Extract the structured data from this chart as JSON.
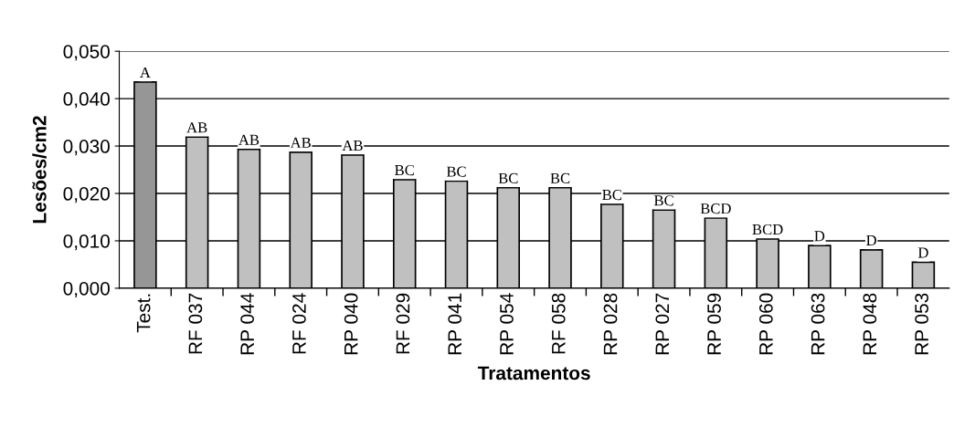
{
  "chart_data": {
    "type": "bar",
    "xlabel": "Tratamentos",
    "ylabel": "Lesões/cm2",
    "categories": [
      "Test.",
      "RF 037",
      "RP 044",
      "RF 024",
      "RP 040",
      "RF 029",
      "RP 041",
      "RP 054",
      "RF 058",
      "RP 028",
      "RP 027",
      "RP 059",
      "RP 060",
      "RP 063",
      "RP 048",
      "RP 053"
    ],
    "values": [
      0.0435,
      0.0319,
      0.0293,
      0.0287,
      0.0281,
      0.0229,
      0.0226,
      0.0212,
      0.0212,
      0.0177,
      0.0165,
      0.0148,
      0.0104,
      0.009,
      0.0081,
      0.0055
    ],
    "colors": [
      "#969696",
      "#c0c0c0",
      "#c0c0c0",
      "#c0c0c0",
      "#c0c0c0",
      "#c0c0c0",
      "#c0c0c0",
      "#c0c0c0",
      "#c0c0c0",
      "#c0c0c0",
      "#c0c0c0",
      "#c0c0c0",
      "#c0c0c0",
      "#c0c0c0",
      "#c0c0c0",
      "#c0c0c0"
    ],
    "value_labels": [
      "A",
      "AB",
      "AB",
      "AB",
      "AB",
      "BC",
      "BC",
      "BC",
      "BC",
      "BC",
      "BC",
      "BCD",
      "BCD",
      "D",
      "D",
      "D"
    ],
    "ylim": [
      0,
      0.05
    ],
    "yticks": [
      {
        "value": 0,
        "label": "0,000"
      },
      {
        "value": 0.01,
        "label": "0,010"
      },
      {
        "value": 0.02,
        "label": "0,020"
      },
      {
        "value": 0.03,
        "label": "0,030"
      },
      {
        "value": 0.04,
        "label": "0,040"
      },
      {
        "value": 0.05,
        "label": "0,050"
      }
    ],
    "grid": "y",
    "legend": false
  }
}
